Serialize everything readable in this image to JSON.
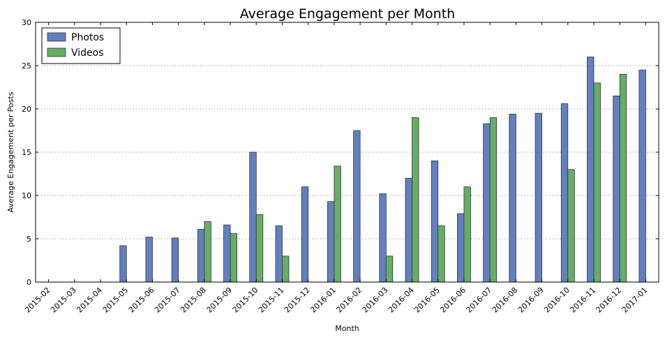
{
  "chart_data": {
    "type": "bar",
    "title": "Average Engagement per Month",
    "xlabel": "Month",
    "ylabel": "Average Engagement per Posts",
    "ylim": [
      0,
      30
    ],
    "yticks": [
      0,
      5,
      10,
      15,
      20,
      25,
      30
    ],
    "grid": "horizontal dotted",
    "legend_position": "top-left",
    "categories": [
      "2015-02",
      "2015-03",
      "2015-04",
      "2015-05",
      "2015-06",
      "2015-07",
      "2015-08",
      "2015-09",
      "2015-10",
      "2015-11",
      "2015-12",
      "2016-01",
      "2016-02",
      "2016-03",
      "2016-04",
      "2016-05",
      "2016-06",
      "2016-07",
      "2016-08",
      "2016-09",
      "2016-10",
      "2016-11",
      "2016-12",
      "2017-01"
    ],
    "series": [
      {
        "name": "Photos",
        "color": "#6280bf",
        "values": [
          0,
          0,
          0,
          4.2,
          5.2,
          5.1,
          6.1,
          6.6,
          15.0,
          6.5,
          11.0,
          9.3,
          17.5,
          10.2,
          12.0,
          14.0,
          7.9,
          18.3,
          19.4,
          19.5,
          20.6,
          26.0,
          21.5,
          24.5
        ]
      },
      {
        "name": "Videos",
        "color": "#66ad66",
        "values": [
          0,
          0,
          0,
          0,
          0,
          0,
          7.0,
          5.6,
          7.8,
          3.0,
          0,
          13.4,
          0,
          3.0,
          19.0,
          6.5,
          11.0,
          19.0,
          0,
          0,
          13.0,
          23.0,
          24.0,
          0
        ]
      }
    ]
  }
}
